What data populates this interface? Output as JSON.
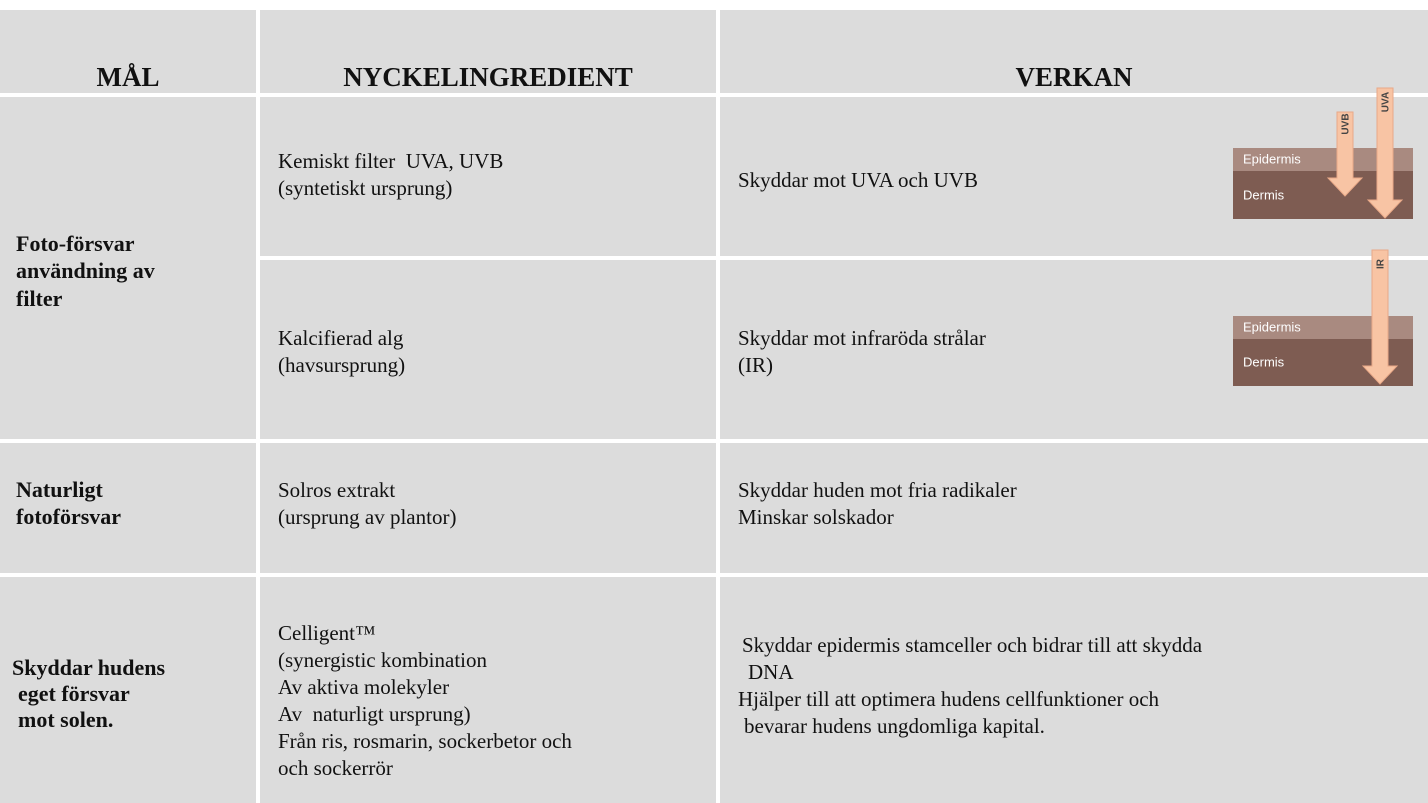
{
  "table": {
    "header": [
      "MÅL",
      "NYCKELINGREDIENT",
      "VERKAN"
    ],
    "groups": [
      {
        "goal": [
          "Foto-försvar",
          "användning av",
          "filter"
        ],
        "items": [
          {
            "ingredient": [
              "Kemiskt filter  UVA, UVB",
              "(syntetiskt ursprung)"
            ],
            "effect": [
              "Skyddar mot UVA och UVB"
            ],
            "diagram": {
              "layers": [
                "Epidermis",
                "Dermis"
              ],
              "rays": [
                "UVB",
                "UVA"
              ]
            }
          },
          {
            "ingredient": [
              "Kalcifierad alg",
              "(havsursprung)"
            ],
            "effect": [
              "Skyddar mot infraröda strålar",
              "(IR)"
            ],
            "diagram": {
              "layers": [
                "Epidermis",
                "Dermis"
              ],
              "rays": [
                "IR"
              ]
            }
          }
        ]
      },
      {
        "goal": [
          "Naturligt",
          "fotoförsvar"
        ],
        "items": [
          {
            "ingredient": [
              "Solros extrakt",
              "(ursprung av plantor)"
            ],
            "effect": [
              "Skyddar huden mot fria radikaler",
              "Minskar solskador"
            ]
          }
        ]
      },
      {
        "goal": [
          "Skyddar hudens",
          "eget försvar",
          "mot solen."
        ],
        "items": [
          {
            "ingredient": [
              "Celligent™",
              "(synergistic kombination",
              "Av aktiva molekyler",
              "Av  naturligt ursprung)",
              "Från ris, rosmarin, sockerbetor och",
              "och sockerrör"
            ],
            "effect": [
              "Skyddar epidermis stamceller och bidrar till att skydda",
              "DNA",
              "Hjälper till att optimera hudens cellfunktioner och",
              "bevarar hudens ungdomliga kapital."
            ]
          }
        ]
      }
    ]
  }
}
